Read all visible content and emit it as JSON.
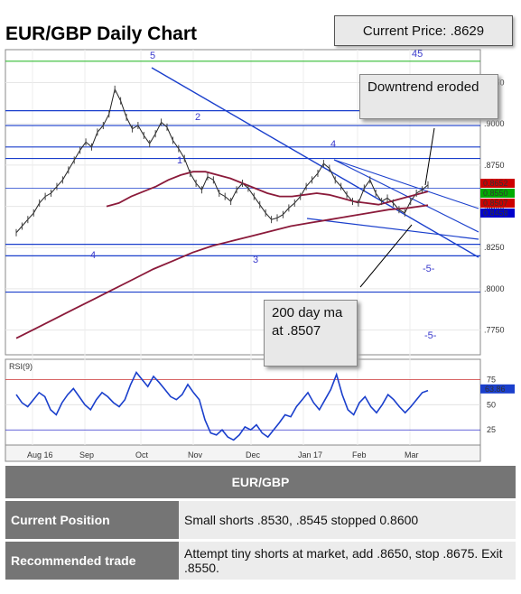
{
  "title": "EUR/GBP Daily Chart",
  "current_price": "Current Price: .8629",
  "callouts": {
    "downtrend": "Downtrend eroded",
    "ma": "200 day ma at .8507"
  },
  "chart_data": [
    {
      "type": "line",
      "title": "",
      "price_axis_ticks": [
        ".9250",
        ".9000",
        ".8750",
        ".8500",
        ".8250",
        ".8000",
        ".7750"
      ],
      "x_tick_labels": [
        "Aug 16",
        "Sep",
        "Oct",
        "Nov",
        "Dec",
        "Jan 17",
        "Feb",
        "Mar"
      ],
      "ylim": [
        0.76,
        0.945
      ],
      "series": [
        {
          "values": [
            0.834,
            0.838,
            0.842,
            0.846,
            0.852,
            0.856,
            0.858,
            0.862,
            0.866,
            0.872,
            0.878,
            0.884,
            0.889,
            0.886,
            0.895,
            0.899,
            0.906,
            0.921,
            0.914,
            0.904,
            0.897,
            0.899,
            0.893,
            0.888,
            0.894,
            0.901,
            0.898,
            0.89,
            0.885,
            0.879,
            0.87,
            0.864,
            0.86,
            0.868,
            0.866,
            0.858,
            0.856,
            0.853,
            0.86,
            0.864,
            0.861,
            0.856,
            0.851,
            0.846,
            0.842,
            0.843,
            0.845,
            0.849,
            0.852,
            0.856,
            0.862,
            0.866,
            0.87,
            0.876,
            0.873,
            0.866,
            0.862,
            0.857,
            0.853,
            0.852,
            0.861,
            0.866,
            0.858,
            0.853,
            0.855,
            0.852,
            0.848,
            0.846,
            0.853,
            0.858,
            0.86,
            0.863
          ]
        },
        {
          "values": [
            0.85,
            0.852,
            0.856,
            0.859,
            0.862,
            0.866,
            0.869,
            0.871,
            0.871,
            0.869,
            0.867,
            0.864,
            0.861,
            0.858,
            0.856,
            0.856,
            0.857,
            0.858,
            0.857,
            0.855,
            0.853,
            0.852,
            0.851,
            0.853,
            0.855,
            0.857,
            0.859
          ]
        },
        {
          "values": [
            0.77,
            0.776,
            0.782,
            0.788,
            0.794,
            0.8,
            0.806,
            0.812,
            0.817,
            0.822,
            0.826,
            0.829,
            0.832,
            0.835,
            0.838,
            0.84,
            0.842,
            0.844,
            0.846,
            0.848,
            0.849,
            0.8507
          ]
        }
      ],
      "levels": [
        {
          "label": "",
          "value": 0.8652,
          "color": "#cc0000",
          "text": "0.8652"
        },
        {
          "label": "",
          "value": 0.855,
          "color": "#00aa00",
          "text": "0.8550"
        },
        {
          "label": "",
          "value": 0.8507,
          "color": "#cc0000",
          "text": "0.8507"
        },
        {
          "label": "",
          "value": 0.8458,
          "color": "#0000cc",
          "text": "0.8458"
        }
      ],
      "horizontal_lines": [
        0.938,
        0.908,
        0.899,
        0.886,
        0.879,
        0.861,
        0.827,
        0.82,
        0.798
      ],
      "wave_labels": [
        "5",
        "2",
        "1",
        "4",
        "3",
        "4",
        "45",
        "-5-",
        "-5-"
      ]
    },
    {
      "type": "line",
      "title": "RSI(9)",
      "ticks": [
        "75",
        "50",
        "25"
      ],
      "current_value": "63.86",
      "ylim": [
        10,
        95
      ],
      "values": [
        60,
        52,
        48,
        55,
        62,
        58,
        45,
        40,
        52,
        60,
        66,
        58,
        50,
        45,
        55,
        62,
        58,
        52,
        48,
        55,
        70,
        82,
        75,
        68,
        78,
        72,
        65,
        58,
        55,
        60,
        70,
        62,
        55,
        35,
        22,
        20,
        25,
        18,
        15,
        20,
        28,
        25,
        30,
        22,
        18,
        25,
        32,
        40,
        38,
        48,
        55,
        62,
        52,
        45,
        55,
        65,
        80,
        60,
        45,
        40,
        52,
        58,
        48,
        42,
        50,
        60,
        55,
        48,
        42,
        48,
        55,
        62,
        64
      ]
    }
  ],
  "table": {
    "header": "EUR/GBP",
    "rows": [
      {
        "label": "Current Position",
        "value": "Small shorts .8530, .8545 stopped 0.8600"
      },
      {
        "label": "Recommended trade",
        "value": "Attempt tiny shorts at market, add .8650, stop .8675. Exit .8550."
      }
    ]
  }
}
